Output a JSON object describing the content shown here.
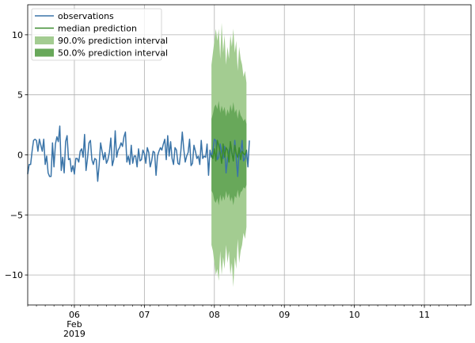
{
  "chart_data": {
    "type": "line",
    "title": "",
    "xlabel": "",
    "ylabel": "",
    "grid": true,
    "legend_position": "top-left",
    "x_start": "2019-02-05T08:00",
    "step_hours": 0.5,
    "xlim": [
      "2019-02-05T08:00",
      "2019-02-11T16:00"
    ],
    "ylim": [
      -12.5,
      12.5
    ],
    "yticks": [
      -10,
      -5,
      0,
      5,
      10
    ],
    "ytick_labels": [
      "−10",
      "−5",
      "0",
      "5",
      "10"
    ],
    "major_ticks": [
      {
        "x": "2019-02-06T00:00",
        "lines": [
          "06",
          "Feb",
          "2019"
        ]
      },
      {
        "x": "2019-02-07T00:00",
        "lines": [
          "07"
        ]
      },
      {
        "x": "2019-02-08T00:00",
        "lines": [
          "08"
        ]
      },
      {
        "x": "2019-02-09T00:00",
        "lines": [
          "09"
        ]
      },
      {
        "x": "2019-02-10T00:00",
        "lines": [
          "10"
        ]
      },
      {
        "x": "2019-02-11T00:00",
        "lines": [
          "11"
        ]
      }
    ],
    "colors": {
      "observations": "#3a74a8",
      "median": "#3a8a2e",
      "interval90": "#a3cc91",
      "interval50": "#68a85a",
      "grid": "#b0b0b0",
      "axis": "#000000"
    },
    "legend": [
      {
        "key": "observations",
        "label": "observations"
      },
      {
        "key": "median",
        "label": "median prediction"
      },
      {
        "key": "interval90",
        "label": "90.0% prediction interval"
      },
      {
        "key": "interval50",
        "label": "50.0% prediction interval"
      }
    ],
    "observations": [
      -1.6,
      -0.8,
      -0.8,
      0.3,
      1.2,
      1.3,
      1.2,
      0.3,
      1.3,
      0.8,
      0.3,
      1.3,
      -0.8,
      -0.1,
      -1.5,
      -1.8,
      -1.8,
      1.0,
      -1.0,
      0.9,
      1.5,
      1.1,
      2.4,
      -1.3,
      -0.2,
      -1.5,
      1.1,
      1.6,
      -0.4,
      -0.3,
      -1.4,
      -0.9,
      -1.6,
      -0.3,
      -0.3,
      -0.6,
      0.3,
      0.5,
      -0.2,
      1.7,
      -1.3,
      -0.3,
      1.0,
      1.2,
      -0.4,
      -0.8,
      -0.3,
      -0.4,
      -2.2,
      -0.8,
      1.0,
      0.3,
      -0.4,
      0.2,
      -0.7,
      -0.4,
      0.2,
      1.4,
      -0.9,
      -0.4,
      2.0,
      -0.2,
      0.4,
      0.6,
      1.0,
      0.7,
      1.5,
      1.9,
      -0.6,
      -0.1,
      -0.8,
      0.8,
      -0.7,
      -0.1,
      -0.1,
      -1.0,
      0.5,
      -0.5,
      -0.4,
      0.4,
      0.1,
      -0.7,
      0.6,
      0.2,
      -1.0,
      -0.5,
      0.3,
      0.2,
      -1.7,
      -0.1,
      0.3,
      0.6,
      0.4,
      0.9,
      1.3,
      -0.4,
      1.6,
      -0.1,
      1.1,
      -0.3,
      -0.8,
      0.6,
      0.4,
      -0.7,
      -0.8,
      0.3,
      1.9,
      0.5,
      -0.6,
      -0.1,
      0.2,
      1.3,
      -0.9,
      -0.7,
      0.8,
      0.3,
      -0.3,
      -0.1,
      -0.8,
      1.2,
      -0.3,
      -0.1,
      -0.2,
      0.9,
      -1.7,
      0.4,
      -0.2,
      0.4,
      1.3,
      1.2,
      -0.4,
      -0.2,
      0.9,
      0.2,
      -0.3,
      0.7,
      -1.5,
      -0.4,
      0.3,
      0.8,
      0.1,
      -0.4,
      1.2,
      -0.3,
      -1.8,
      0.4,
      0.2,
      1.2,
      -0.5,
      -0.3,
      0.4,
      -1.0,
      1.2
    ],
    "forecast_start_index": 126,
    "median": [
      0.0,
      -0.3,
      0.5,
      -0.5,
      1.2,
      0.8,
      0.2,
      -0.7,
      0.9,
      -0.2,
      0.6,
      0.4,
      -0.6,
      1.1,
      0.2,
      -0.5,
      0.8,
      0.1,
      -0.2,
      0.6,
      -0.4,
      0.3,
      0.1,
      0.0,
      0.4
    ],
    "q05": [
      -7.5,
      -8.0,
      -9.0,
      -10.0,
      -9.5,
      -10.5,
      -8.0,
      -10.0,
      -8.5,
      -9.5,
      -7.5,
      -9.0,
      -8.0,
      -10.0,
      -9.0,
      -11.0,
      -8.5,
      -9.5,
      -7.0,
      -9.0,
      -8.0,
      -7.5,
      -6.5,
      -7.0,
      -6.0
    ],
    "q25": [
      -3.0,
      -3.2,
      -3.8,
      -4.0,
      -3.6,
      -4.2,
      -3.3,
      -3.9,
      -3.4,
      -3.8,
      -3.0,
      -3.6,
      -3.2,
      -3.9,
      -3.5,
      -4.2,
      -3.4,
      -3.6,
      -2.9,
      -3.6,
      -3.1,
      -3.0,
      -2.7,
      -2.8,
      -2.5
    ],
    "q75": [
      3.0,
      3.4,
      4.0,
      4.2,
      3.8,
      4.5,
      3.5,
      4.1,
      3.6,
      4.0,
      3.2,
      3.8,
      3.4,
      4.2,
      3.6,
      4.4,
      3.5,
      3.8,
      3.0,
      3.8,
      3.3,
      3.1,
      2.8,
      3.0,
      2.6
    ],
    "q95": [
      7.5,
      8.5,
      9.5,
      10.5,
      9.5,
      10.5,
      8.0,
      11.0,
      8.5,
      10.0,
      7.5,
      9.0,
      8.0,
      10.0,
      9.0,
      10.5,
      8.5,
      9.5,
      7.0,
      9.0,
      8.0,
      7.5,
      6.5,
      7.0,
      6.0
    ]
  }
}
